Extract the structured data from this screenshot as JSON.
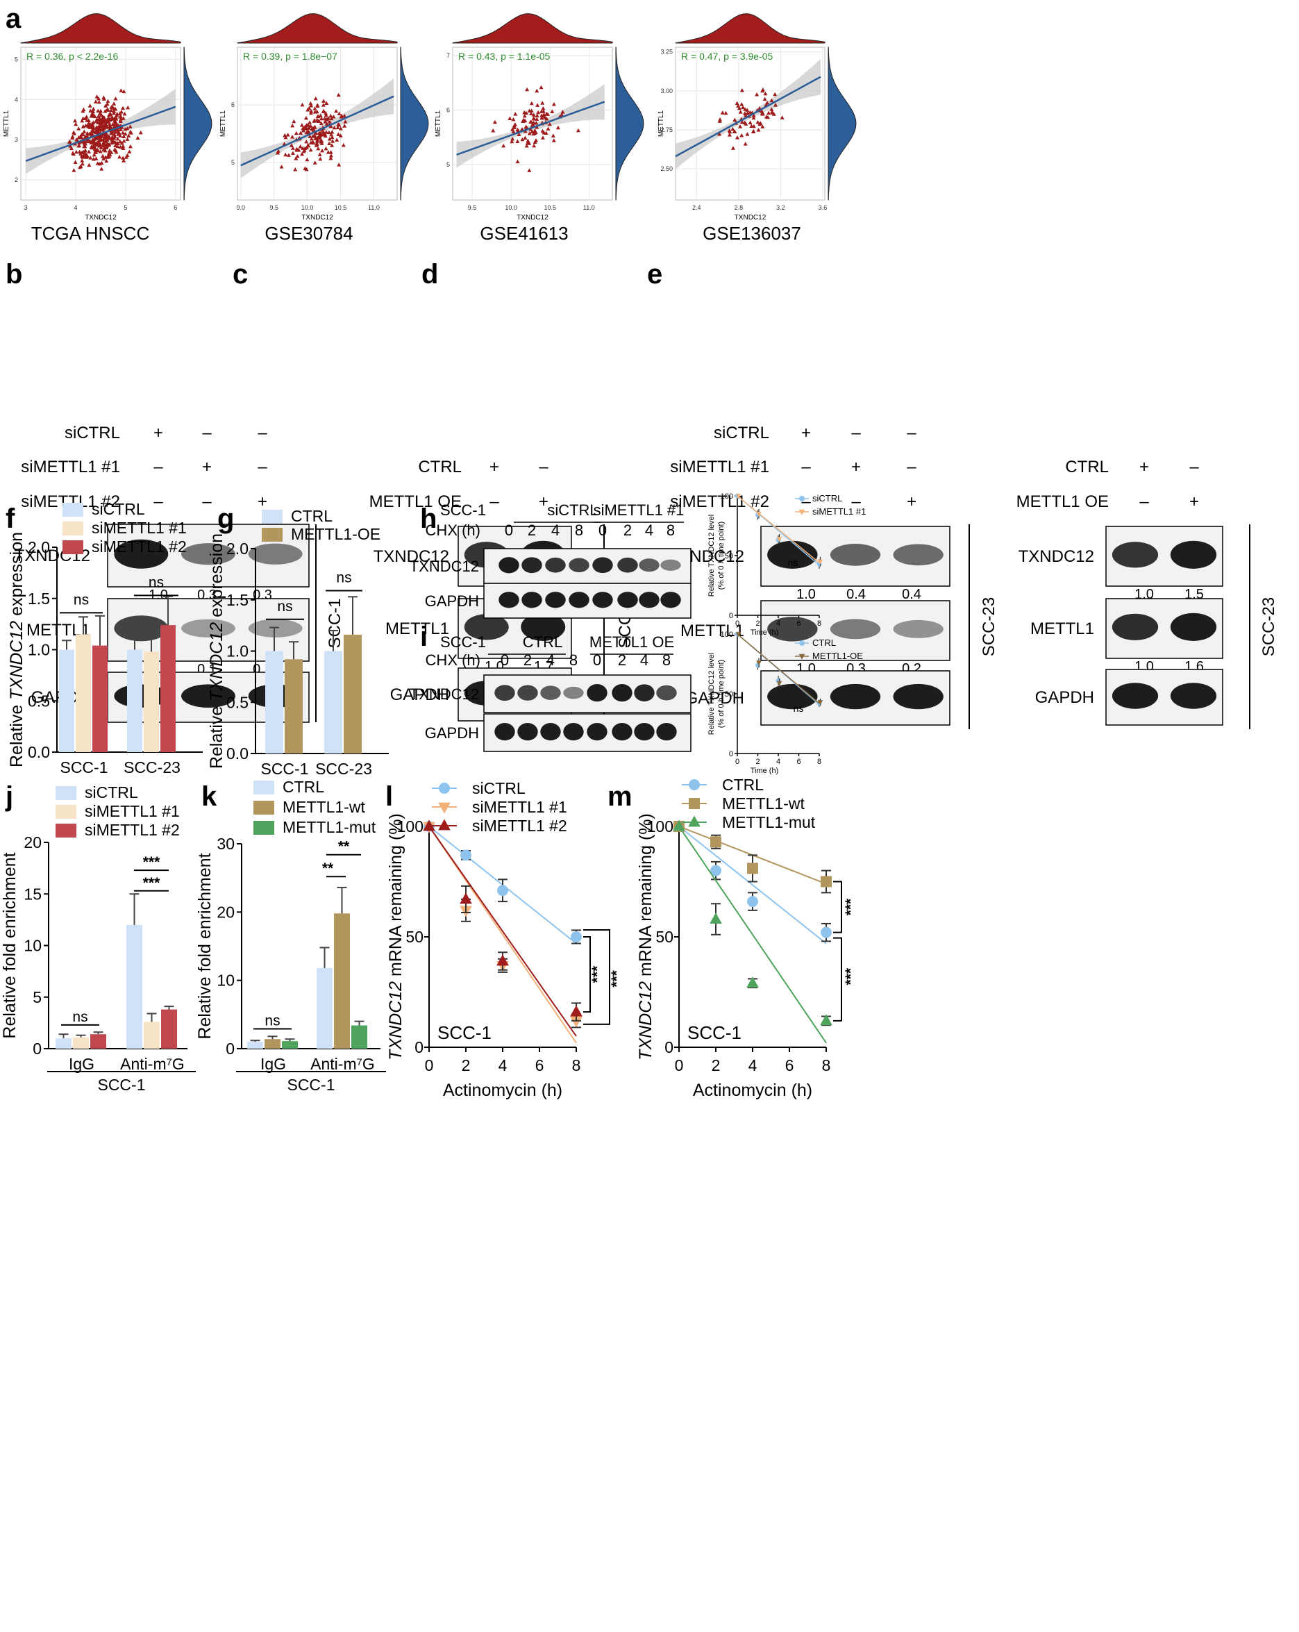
{
  "panel_letters": {
    "a": "a",
    "b": "b",
    "c": "c",
    "d": "d",
    "e": "e",
    "f": "f",
    "g": "g",
    "h": "h",
    "i": "i",
    "j": "j",
    "k": "k",
    "l": "l",
    "m": "m"
  },
  "chart_data": [
    {
      "id": "a1",
      "type": "scatter",
      "title": "TCGA HNSCC",
      "annotation": "R = 0.36, p < 2.2e-16",
      "xlabel": "TXNDC12",
      "ylabel": "METTL1",
      "xlim": [
        2.9,
        6.1
      ],
      "ylim": [
        1.5,
        5.3
      ],
      "xticks": [
        3,
        4,
        5,
        6
      ],
      "yticks": [
        2,
        3,
        4,
        5
      ],
      "fit": [
        [
          3,
          2.47
        ],
        [
          6,
          3.82
        ]
      ],
      "n_points": 420
    },
    {
      "id": "a2",
      "type": "scatter",
      "title": "GSE30784",
      "annotation": "R = 0.39, p = 1.8e−07",
      "xlabel": "TXNDC12",
      "ylabel": "METTL1",
      "xlim": [
        8.95,
        11.35
      ],
      "ylim": [
        4.35,
        7.0
      ],
      "xticks": [
        "9.0",
        "9.5",
        "10.0",
        "10.5",
        "11.0"
      ],
      "yticks": [
        5,
        6
      ],
      "fit": [
        [
          9,
          4.95
        ],
        [
          11.3,
          6.15
        ]
      ],
      "n_points": 180
    },
    {
      "id": "a3",
      "type": "scatter",
      "title": "GSE41613",
      "annotation": "R = 0.43, p = 1.1e-05",
      "xlabel": "TXNDC12",
      "ylabel": "METTL1",
      "xlim": [
        9.25,
        11.3
      ],
      "ylim": [
        4.35,
        7.15
      ],
      "xticks": [
        "9.5",
        "10.0",
        "10.5",
        "11.0"
      ],
      "yticks": [
        5,
        6,
        7
      ],
      "fit": [
        [
          9.3,
          5.18
        ],
        [
          11.2,
          6.15
        ]
      ],
      "n_points": 100
    },
    {
      "id": "a4",
      "type": "scatter",
      "title": "GSE136037",
      "annotation": "R = 0.47, p = 3.9e-05",
      "xlabel": "TXNDC12",
      "ylabel": "METTL1",
      "xlim": [
        2.2,
        3.62
      ],
      "ylim": [
        2.3,
        3.28
      ],
      "xticks": [
        "2.4",
        "2.8",
        "3.2",
        "3.6"
      ],
      "yticks": [
        "2.50",
        "2.75",
        "3.00",
        "3.25"
      ],
      "fit": [
        [
          2.2,
          2.58
        ],
        [
          3.58,
          3.09
        ]
      ],
      "n_points": 75
    },
    {
      "id": "f",
      "type": "bar",
      "ylabel_pre": "Relative ",
      "ylabel_it": "TXNDC12",
      "ylabel_post": " expression",
      "categories": [
        "SCC-1",
        "SCC-23"
      ],
      "ylim": [
        0,
        2.0
      ],
      "yticks": [
        "0.0",
        "0.5",
        "1.0",
        "1.5",
        "2.0"
      ],
      "series": [
        {
          "name": "siCTRL",
          "color": "#cfe2f7",
          "values": [
            1.0,
            1.0
          ],
          "err": [
            0.09,
            0.23
          ]
        },
        {
          "name": "siMETTL1 #1",
          "color": "#f7e3c6",
          "values": [
            1.15,
            0.98
          ],
          "err": [
            0.17,
            0.15
          ]
        },
        {
          "name": "siMETTL1 #2",
          "color": "#c2474f",
          "values": [
            1.04,
            1.24
          ],
          "err": [
            0.29,
            0.28
          ]
        }
      ],
      "annotations": [
        "ns",
        "ns"
      ]
    },
    {
      "id": "g",
      "type": "bar",
      "ylabel_pre": "Relative ",
      "ylabel_it": "TXNDC12",
      "ylabel_post": " expression",
      "categories": [
        "SCC-1",
        "SCC-23"
      ],
      "ylim": [
        0,
        2.0
      ],
      "yticks": [
        "0.0",
        "0.5",
        "1.0",
        "1.5",
        "2.0"
      ],
      "series": [
        {
          "name": "CTRL",
          "color": "#cfe2f7",
          "values": [
            1.0,
            1.0
          ],
          "err": [
            0.23,
            0.2
          ]
        },
        {
          "name": "METTL1-OE",
          "color": "#b3955e",
          "values": [
            0.92,
            1.16
          ],
          "err": [
            0.17,
            0.37
          ]
        }
      ],
      "annotations": [
        "ns",
        "ns"
      ]
    },
    {
      "id": "h",
      "type": "line",
      "xlabel": "Time (h)",
      "ylabel1": "Relative TXNDC12 level",
      "ylabel2": "(% of 0 h time point)",
      "x": [
        0,
        2,
        4,
        8
      ],
      "xticks": [
        0,
        2,
        4,
        6,
        8
      ],
      "ylim": [
        0,
        100
      ],
      "yticks": [
        0,
        50,
        100
      ],
      "annotation": "ns",
      "series": [
        {
          "name": "siCTRL",
          "color": "#8ec3ee",
          "values": [
            100,
            84,
            63,
            43
          ],
          "err": [
            0,
            4,
            4,
            4
          ]
        },
        {
          "name": "siMETTL1 #1",
          "color": "#f2b27a",
          "values": [
            100,
            85,
            64,
            45
          ],
          "err": [
            0,
            4,
            4,
            4
          ]
        }
      ]
    },
    {
      "id": "i",
      "type": "line",
      "xlabel": "Time (h)",
      "ylabel1": "Relative TXNDC12 level",
      "ylabel2": "(% of 0 h time point)",
      "x": [
        0,
        2,
        4,
        8
      ],
      "xticks": [
        0,
        2,
        4,
        6,
        8
      ],
      "ylim": [
        0,
        100
      ],
      "yticks": [
        0,
        50,
        100
      ],
      "annotation": "ns",
      "series": [
        {
          "name": "CTRL",
          "color": "#8ec3ee",
          "values": [
            100,
            74,
            61,
            42
          ],
          "err": [
            0,
            4,
            4,
            3
          ]
        },
        {
          "name": "METTL1-OE",
          "color": "#8b6a3e",
          "values": [
            100,
            76,
            59,
            43
          ],
          "err": [
            0,
            4,
            4,
            3
          ]
        }
      ]
    },
    {
      "id": "j",
      "type": "bar",
      "ylabel": "Relative fold enrichment",
      "categories": [
        "IgG",
        "Anti-m⁷G"
      ],
      "ylim": [
        0,
        20
      ],
      "yticks": [
        "0",
        "5",
        "10",
        "15",
        "20"
      ],
      "group_label": "SCC-1",
      "series": [
        {
          "name": "siCTRL",
          "color": "#cfe2f7",
          "values": [
            1.0,
            12.0
          ],
          "err": [
            0.4,
            3.0
          ]
        },
        {
          "name": "siMETTL1 #1",
          "color": "#f7e3c6",
          "values": [
            1.1,
            2.6
          ],
          "err": [
            0.2,
            0.8
          ]
        },
        {
          "name": "siMETTL1 #2",
          "color": "#c2474f",
          "values": [
            1.4,
            3.8
          ],
          "err": [
            0.2,
            0.3
          ]
        }
      ],
      "annotations": [
        "ns",
        "***",
        "***"
      ]
    },
    {
      "id": "k",
      "type": "bar",
      "ylabel": "Relative fold enrichment",
      "categories": [
        "IgG",
        "Anti-m⁷G"
      ],
      "ylim": [
        0,
        30
      ],
      "yticks": [
        "0",
        "10",
        "20",
        "30"
      ],
      "group_label": "SCC-1",
      "series": [
        {
          "name": "CTRL",
          "color": "#cfe2f7",
          "values": [
            1.0,
            11.8
          ],
          "err": [
            0.2,
            3.0
          ]
        },
        {
          "name": "METTL1-wt",
          "color": "#b3955e",
          "values": [
            1.4,
            19.8
          ],
          "err": [
            0.4,
            3.8
          ]
        },
        {
          "name": "METTL1-mut",
          "color": "#4fa35c",
          "values": [
            1.1,
            3.4
          ],
          "err": [
            0.3,
            0.6
          ]
        }
      ],
      "annotations": [
        "ns",
        "**",
        "**"
      ]
    },
    {
      "id": "l",
      "type": "line",
      "xlabel": "Actinomycin (h)",
      "ylabel_it": "TXNDC12",
      "ylabel_post": " mRNA remaining (%)",
      "x": [
        0,
        2,
        4,
        8
      ],
      "xticks": [
        0,
        2,
        4,
        6,
        8
      ],
      "ylim": [
        0,
        100
      ],
      "yticks": [
        0,
        50,
        100
      ],
      "corner": "SCC-1",
      "series": [
        {
          "name": "siCTRL",
          "color": "#8ec3ee",
          "marker": "circle",
          "values": [
            100,
            87,
            71,
            50
          ],
          "err": [
            0,
            2,
            5,
            3
          ],
          "fit_end": 47
        },
        {
          "name": "siMETTL1 #1",
          "color": "#f2b27a",
          "marker": "tri-down",
          "values": [
            100,
            62,
            37,
            12
          ],
          "err": [
            0,
            5,
            3,
            3
          ],
          "fit_end": 2
        },
        {
          "name": "siMETTL1 #2",
          "color": "#9e1c1c",
          "marker": "tri-up",
          "values": [
            100,
            67,
            39,
            16
          ],
          "err": [
            0,
            6,
            4,
            4
          ],
          "fit_end": 5
        }
      ],
      "annotations": [
        "***",
        "***"
      ]
    },
    {
      "id": "m",
      "type": "line",
      "xlabel": "Actinomycin (h)",
      "ylabel_it": "TXNDC12",
      "ylabel_post": " mRNA remaining (%)",
      "x": [
        0,
        2,
        4,
        8
      ],
      "xticks": [
        0,
        2,
        4,
        6,
        8
      ],
      "ylim": [
        0,
        100
      ],
      "yticks": [
        0,
        50,
        100
      ],
      "corner": "SCC-1",
      "series": [
        {
          "name": "CTRL",
          "color": "#8ec3ee",
          "marker": "circle",
          "values": [
            100,
            80,
            66,
            52
          ],
          "err": [
            0,
            4,
            4,
            4
          ],
          "fit_end": 47
        },
        {
          "name": "METTL1-wt",
          "color": "#b3955e",
          "marker": "square",
          "values": [
            100,
            93,
            81,
            75
          ],
          "err": [
            0,
            3,
            6,
            5
          ],
          "fit_end": 74
        },
        {
          "name": "METTL1-mut",
          "color": "#4fa35c",
          "marker": "tri-up",
          "values": [
            100,
            58,
            29,
            12
          ],
          "err": [
            0,
            7,
            2,
            2
          ],
          "fit_end": 2
        }
      ],
      "annotations": [
        "***",
        "***"
      ]
    }
  ],
  "blots": {
    "b": {
      "cond_labels": [
        "siCTRL",
        "siMETTL1 #1",
        "siMETTL1 #2"
      ],
      "signs": [
        [
          "+",
          "–",
          "–"
        ],
        [
          "–",
          "+",
          "–"
        ],
        [
          "–",
          "–",
          "+"
        ]
      ],
      "bands": [
        {
          "label": "TXNDC12",
          "intens": [
            1.0,
            0.45,
            0.4
          ],
          "quant": [
            "1.0",
            "0.3",
            "0.3"
          ]
        },
        {
          "label": "METTL1",
          "intens": [
            0.75,
            0.2,
            0.2
          ],
          "quant": [
            "1.0",
            "0.1",
            "0.1"
          ]
        },
        {
          "label": "GAPDH",
          "intens": [
            1,
            1,
            1
          ],
          "quant": null
        }
      ],
      "cell": "SCC-1"
    },
    "c": {
      "cond_labels": [
        "CTRL",
        "METTL1 OE"
      ],
      "signs": [
        [
          "+",
          "–"
        ],
        [
          "–",
          "+"
        ]
      ],
      "bands": [
        {
          "label": "TXNDC12",
          "intens": [
            0.85,
            1.0
          ],
          "quant": [
            "1.0",
            "1.8"
          ]
        },
        {
          "label": "METTL1",
          "intens": [
            0.85,
            1.0
          ],
          "quant": [
            "1.0",
            "1.7"
          ]
        },
        {
          "label": "GAPDH",
          "intens": [
            1,
            1
          ],
          "quant": null
        }
      ],
      "cell": "SCC-1"
    },
    "d": {
      "cond_labels": [
        "siCTRL",
        "siMETTL1 #1",
        "siMETTL1 #2"
      ],
      "signs": [
        [
          "+",
          "–",
          "–"
        ],
        [
          "–",
          "+",
          "–"
        ],
        [
          "–",
          "–",
          "+"
        ]
      ],
      "bands": [
        {
          "label": "TXNDC12",
          "intens": [
            1.0,
            0.55,
            0.5
          ],
          "quant": [
            "1.0",
            "0.4",
            "0.4"
          ]
        },
        {
          "label": "METTL1",
          "intens": [
            0.75,
            0.4,
            0.25
          ],
          "quant": [
            "1.0",
            "0.3",
            "0.2"
          ]
        },
        {
          "label": "GAPDH",
          "intens": [
            1,
            1,
            1
          ],
          "quant": null
        }
      ],
      "cell": "SCC-23"
    },
    "e": {
      "cond_labels": [
        "CTRL",
        "METTL1 OE"
      ],
      "signs": [
        [
          "+",
          "–"
        ],
        [
          "–",
          "+"
        ]
      ],
      "bands": [
        {
          "label": "TXNDC12",
          "intens": [
            0.85,
            1.0
          ],
          "quant": [
            "1.0",
            "1.5"
          ]
        },
        {
          "label": "METTL1",
          "intens": [
            0.9,
            1.0
          ],
          "quant": [
            "1.0",
            "1.6"
          ]
        },
        {
          "label": "GAPDH",
          "intens": [
            1,
            1
          ],
          "quant": null
        }
      ],
      "cell": "SCC-23"
    },
    "h": {
      "cell_label": "SCC-1",
      "chx_label": "CHX (h)",
      "group1": "siCTRL",
      "group2": "siMETTL1 #1",
      "times": [
        "0",
        "2",
        "4",
        "8",
        "0",
        "2",
        "4",
        "8"
      ],
      "bands": [
        {
          "label": "TXNDC12",
          "intens": [
            1,
            0.95,
            0.85,
            0.75,
            0.95,
            0.85,
            0.6,
            0.35
          ]
        },
        {
          "label": "GAPDH",
          "intens": [
            1,
            1,
            1,
            1,
            1,
            1,
            1,
            1
          ]
        }
      ]
    },
    "i": {
      "cell_label": "SCC-1",
      "chx_label": "CHX (h)",
      "group1": "CTRL",
      "group2": "METTL1 OE",
      "times": [
        "0",
        "2",
        "4",
        "8",
        "0",
        "2",
        "4",
        "8"
      ],
      "bands": [
        {
          "label": "TXNDC12",
          "intens": [
            0.8,
            0.75,
            0.6,
            0.35,
            1,
            1,
            0.95,
            0.7
          ]
        },
        {
          "label": "GAPDH",
          "intens": [
            1,
            1,
            1,
            1,
            1,
            1,
            1,
            1
          ]
        }
      ]
    }
  }
}
